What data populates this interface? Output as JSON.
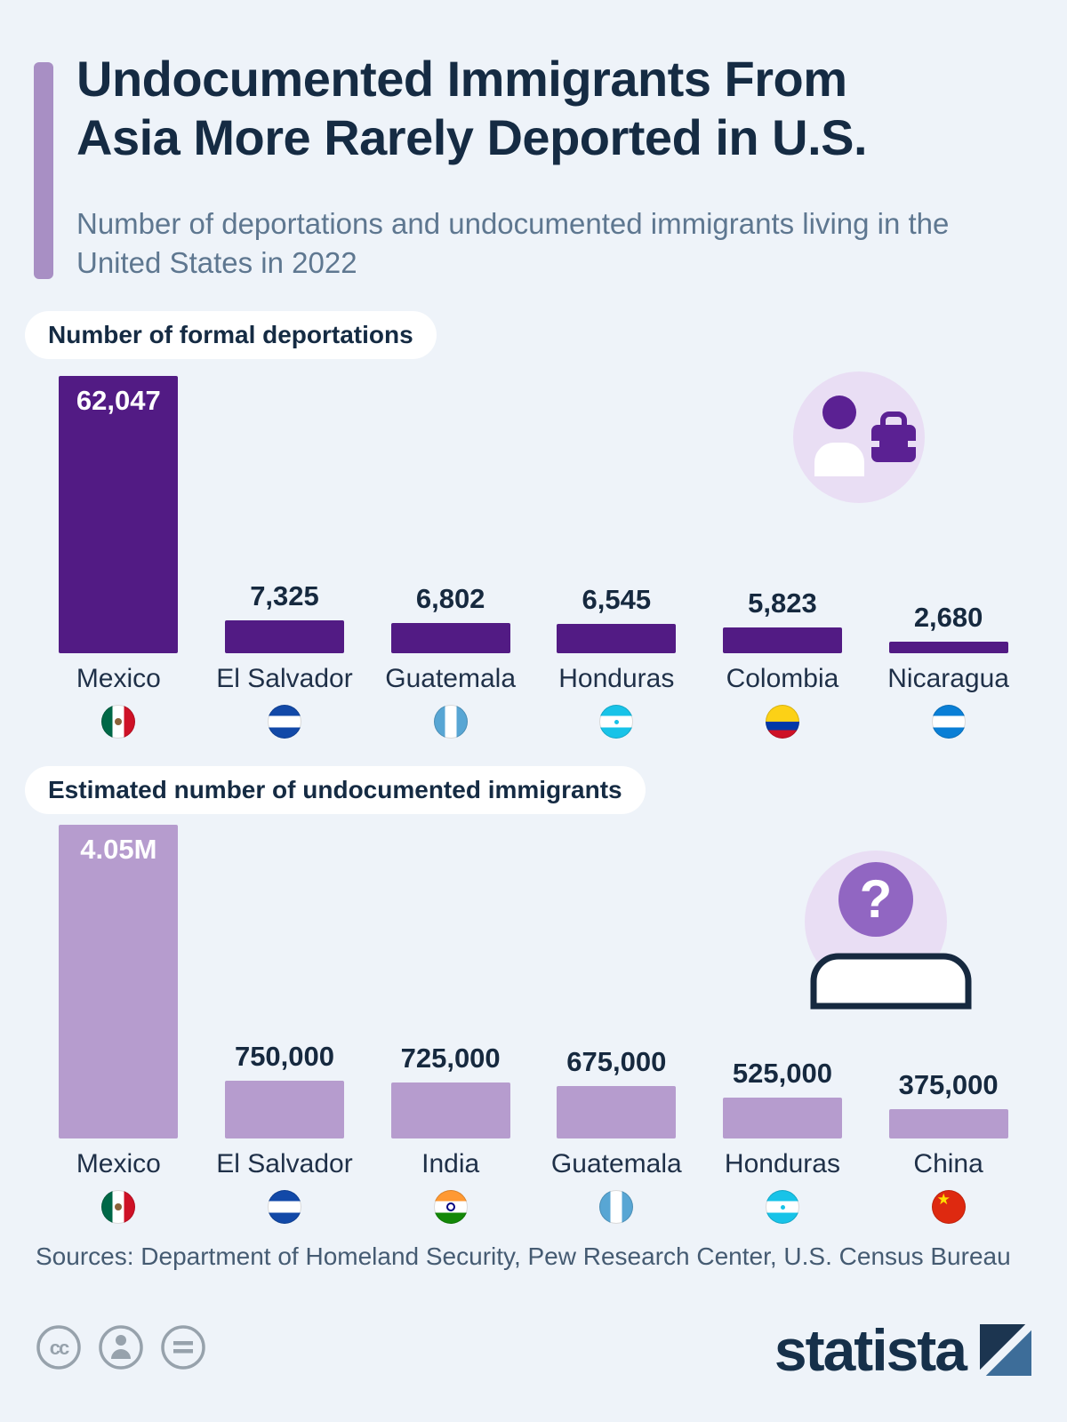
{
  "header": {
    "title_line1": "Undocumented Immigrants From",
    "title_line2": "Asia More Rarely Deported in U.S.",
    "subtitle": "Number of deportations and undocumented immigrants living in the United States in 2022"
  },
  "chart_data": [
    {
      "type": "bar",
      "title": "Number of formal deportations",
      "categories": [
        "Mexico",
        "El Salvador",
        "Guatemala",
        "Honduras",
        "Colombia",
        "Nicaragua"
      ],
      "values": [
        62047,
        7325,
        6802,
        6545,
        5823,
        2680
      ],
      "value_labels": [
        "62,047",
        "7,325",
        "6,802",
        "6,545",
        "5,823",
        "2,680"
      ],
      "flags": [
        "mexico",
        "el-salvador",
        "guatemala",
        "honduras",
        "colombia",
        "nicaragua"
      ],
      "bar_color": "#521b84",
      "ylim": [
        0,
        62047
      ],
      "legend": "none",
      "grid": false,
      "first_bar_label_position": "inside-top"
    },
    {
      "type": "bar",
      "title": "Estimated number of undocumented immigrants",
      "categories": [
        "Mexico",
        "El Salvador",
        "India",
        "Guatemala",
        "Honduras",
        "China"
      ],
      "values": [
        4050000,
        750000,
        725000,
        675000,
        525000,
        375000
      ],
      "value_labels": [
        "4.05M",
        "750,000",
        "725,000",
        "675,000",
        "525,000",
        "375,000"
      ],
      "flags": [
        "mexico",
        "el-salvador",
        "india",
        "guatemala",
        "honduras",
        "china"
      ],
      "bar_color": "#b69cce",
      "ylim": [
        0,
        4050000
      ],
      "legend": "none",
      "grid": false,
      "first_bar_label_position": "inside-top"
    }
  ],
  "icons": {
    "deco_chart1": "person-with-suitcase-icon",
    "deco_chart2": "person-with-question-mark-icon",
    "license": [
      "cc-icon",
      "attribution-person-icon",
      "equal-sign-icon"
    ]
  },
  "footer": {
    "sources": "Sources: Department of Homeland Security, Pew Research Center, U.S. Census Bureau",
    "brand": "statista"
  },
  "colors": {
    "background": "#eef3f9",
    "title": "#152b43",
    "subtitle": "#5e7790",
    "accent_bar": "#a88fc4",
    "bar_dark_purple": "#521b84",
    "bar_light_purple": "#b69cce",
    "icon_circle": "#e9def4",
    "logo_navy": "#16304a"
  }
}
